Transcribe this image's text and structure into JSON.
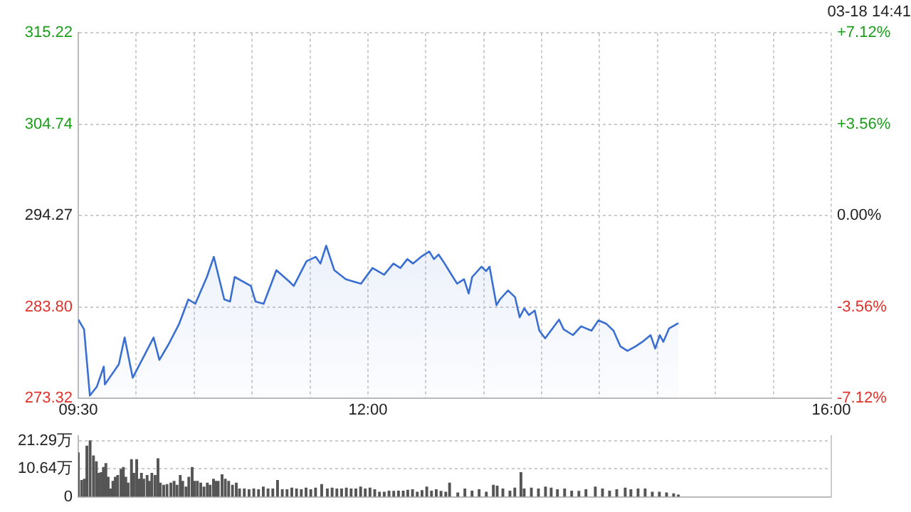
{
  "chart_data": [
    {
      "type": "area",
      "subtitle": "03-18 14:41",
      "color": "#3a6fd1",
      "x": [
        9.5,
        9.55,
        9.6,
        9.66,
        9.72,
        9.73,
        9.85,
        9.9,
        9.97,
        10.05,
        10.15,
        10.2,
        10.28,
        10.37,
        10.45,
        10.51,
        10.61,
        10.67,
        10.76,
        10.81,
        10.85,
        10.99,
        11.03,
        11.1,
        11.21,
        11.32,
        11.36,
        11.47,
        11.55,
        11.59,
        11.64,
        11.71,
        11.81,
        11.94,
        12.04,
        12.14,
        12.22,
        12.28,
        12.34,
        12.39,
        12.47,
        12.53,
        12.57,
        12.61,
        12.65,
        12.71,
        12.77,
        12.83,
        12.87,
        12.9,
        12.98,
        13.02,
        13.05,
        13.11,
        13.14,
        13.21,
        13.27,
        13.31,
        13.35,
        13.39,
        13.44,
        13.48,
        13.53,
        13.65,
        13.69,
        13.77,
        13.84,
        13.93,
        13.99,
        14.06,
        14.12,
        14.18,
        14.24,
        14.31,
        14.37,
        14.44,
        14.48,
        14.52,
        14.55,
        14.6,
        14.68
      ],
      "values": [
        282.34,
        281.22,
        273.62,
        274.64,
        276.95,
        274.9,
        277.21,
        280.29,
        275.67,
        277.72,
        280.29,
        277.72,
        279.52,
        281.84,
        284.66,
        284.15,
        287.23,
        289.54,
        284.66,
        284.41,
        287.23,
        286.2,
        284.41,
        284.15,
        288.0,
        286.72,
        286.2,
        289.03,
        289.54,
        288.77,
        290.82,
        288.0,
        286.97,
        286.46,
        288.26,
        287.49,
        288.77,
        288.26,
        289.28,
        288.77,
        289.65,
        290.16,
        289.28,
        289.8,
        289.03,
        287.74,
        286.46,
        286.97,
        285.33,
        287.23,
        288.41,
        287.89,
        288.41,
        283.99,
        284.66,
        285.69,
        284.92,
        282.61,
        283.64,
        282.87,
        283.38,
        281.07,
        280.19,
        282.34,
        281.22,
        280.56,
        281.57,
        281.07,
        282.25,
        281.84,
        281.07,
        279.26,
        278.75,
        279.26,
        279.79,
        280.56,
        279.02,
        280.56,
        279.79,
        281.33,
        281.94
      ],
      "xlim": [
        9.5,
        16
      ],
      "xticks": [
        {
          "value": 9.5,
          "label": "09:30"
        },
        {
          "value": 10,
          "label": null
        },
        {
          "value": 10.5,
          "label": null
        },
        {
          "value": 11,
          "label": null
        },
        {
          "value": 11.5,
          "label": null
        },
        {
          "value": 12,
          "label": "12:00"
        },
        {
          "value": 12.5,
          "label": null
        },
        {
          "value": 13,
          "label": null
        },
        {
          "value": 13.5,
          "label": null
        },
        {
          "value": 14,
          "label": null
        },
        {
          "value": 14.5,
          "label": null
        },
        {
          "value": 15,
          "label": null
        },
        {
          "value": 15.5,
          "label": null
        },
        {
          "value": 16,
          "label": "16:00"
        }
      ],
      "ylim": [
        273.32,
        315.22
      ],
      "yticks": [
        273.32,
        {
          "value": 283.8,
          "label": "283.80"
        },
        294.27,
        304.74,
        315.22
      ],
      "y2lim": [
        -7.12,
        7.12
      ],
      "y2ticks": [
        {
          "value": -7.12,
          "label": "-7.12%"
        },
        {
          "value": -3.56,
          "label": "-3.56%"
        },
        {
          "value": 0,
          "label": "0.00%"
        },
        {
          "value": 3.56,
          "label": "+3.56%"
        },
        {
          "value": 7.12,
          "label": "+7.12%"
        }
      ],
      "grid": true,
      "legend": false,
      "marker": "none",
      "line_style": "solid"
    },
    {
      "type": "bar",
      "color": "#555555",
      "x": [
        9.5,
        9.529,
        9.553,
        9.574,
        9.602,
        9.631,
        9.656,
        9.676,
        9.697,
        9.717,
        9.738,
        9.758,
        9.778,
        9.799,
        9.819,
        9.84,
        9.869,
        9.889,
        9.91,
        9.93,
        9.959,
        9.979,
        10.004,
        10.024,
        10.045,
        10.065,
        10.094,
        10.114,
        10.135,
        10.163,
        10.188,
        10.208,
        10.237,
        10.266,
        10.299,
        10.327,
        10.352,
        10.38,
        10.401,
        10.43,
        10.454,
        10.483,
        10.503,
        10.528,
        10.557,
        10.585,
        10.614,
        10.638,
        10.667,
        10.688,
        10.708,
        10.741,
        10.769,
        10.798,
        10.831,
        10.864,
        10.892,
        10.933,
        10.974,
        11.015,
        11.056,
        11.097,
        11.138,
        11.179,
        11.22,
        11.261,
        11.302,
        11.343,
        11.384,
        11.425,
        11.466,
        11.507,
        11.548,
        11.601,
        11.65,
        11.691,
        11.732,
        11.773,
        11.814,
        11.855,
        11.896,
        11.937,
        11.977,
        12.018,
        12.059,
        12.1,
        12.141,
        12.182,
        12.223,
        12.264,
        12.305,
        12.344,
        12.385,
        12.426,
        12.467,
        12.508,
        12.549,
        12.59,
        12.631,
        12.672,
        12.705,
        12.776,
        12.837,
        12.899,
        12.96,
        13.022,
        13.083,
        13.116,
        13.165,
        13.226,
        13.268,
        13.321,
        13.349,
        13.411,
        13.472,
        13.533,
        13.582,
        13.636,
        13.698,
        13.759,
        13.821,
        13.882,
        13.963,
        14.025,
        14.086,
        14.148,
        14.221,
        14.27,
        14.332,
        14.393,
        14.455,
        14.516,
        14.578,
        14.639,
        14.68
      ],
      "values": [
        16.6,
        6.2,
        6.7,
        19.2,
        21.2,
        15.5,
        13.3,
        8.9,
        9.2,
        11.1,
        12.6,
        7.4,
        3.0,
        5.9,
        7.4,
        8.1,
        10.4,
        11.1,
        7.4,
        5.2,
        14.1,
        8.9,
        14.1,
        6.7,
        8.9,
        6.7,
        8.1,
        5.9,
        8.9,
        8.1,
        14.4,
        5.2,
        4.4,
        4.7,
        5.2,
        5.9,
        4.4,
        8.1,
        5.9,
        3.7,
        7.4,
        11.1,
        5.9,
        5.9,
        5.2,
        3.7,
        5.2,
        4.4,
        6.7,
        5.9,
        5.9,
        8.4,
        6.7,
        5.9,
        4.4,
        5.2,
        3.0,
        3.0,
        2.7,
        3.0,
        2.7,
        3.7,
        3.0,
        3.0,
        6.2,
        2.7,
        2.7,
        3.3,
        3.0,
        2.7,
        3.3,
        2.7,
        3.3,
        4.7,
        3.0,
        3.3,
        3.0,
        3.0,
        3.3,
        3.0,
        3.0,
        3.7,
        3.0,
        3.3,
        2.7,
        1.8,
        1.8,
        2.2,
        2.1,
        2.2,
        2.2,
        2.5,
        2.7,
        1.8,
        2.4,
        3.7,
        2.2,
        2.7,
        2.1,
        1.8,
        5.2,
        1.5,
        3.0,
        2.2,
        2.7,
        1.8,
        4.4,
        4.1,
        3.0,
        2.2,
        3.3,
        9.2,
        3.0,
        3.3,
        3.0,
        3.7,
        3.3,
        2.7,
        3.0,
        2.2,
        2.1,
        2.7,
        3.7,
        3.0,
        2.2,
        2.7,
        3.3,
        2.7,
        3.0,
        3.0,
        1.8,
        1.8,
        1.5,
        1.2,
        0.7
      ],
      "xlim": [
        9.5,
        16
      ],
      "ylim": [
        0,
        23
      ],
      "yticks": [
        0,
        {
          "value": 10.64,
          "label": "10.64万"
        },
        {
          "value": 21.29,
          "label": "21.29万"
        }
      ],
      "tick_labels": "y",
      "grid": "y",
      "legend": false
    }
  ]
}
